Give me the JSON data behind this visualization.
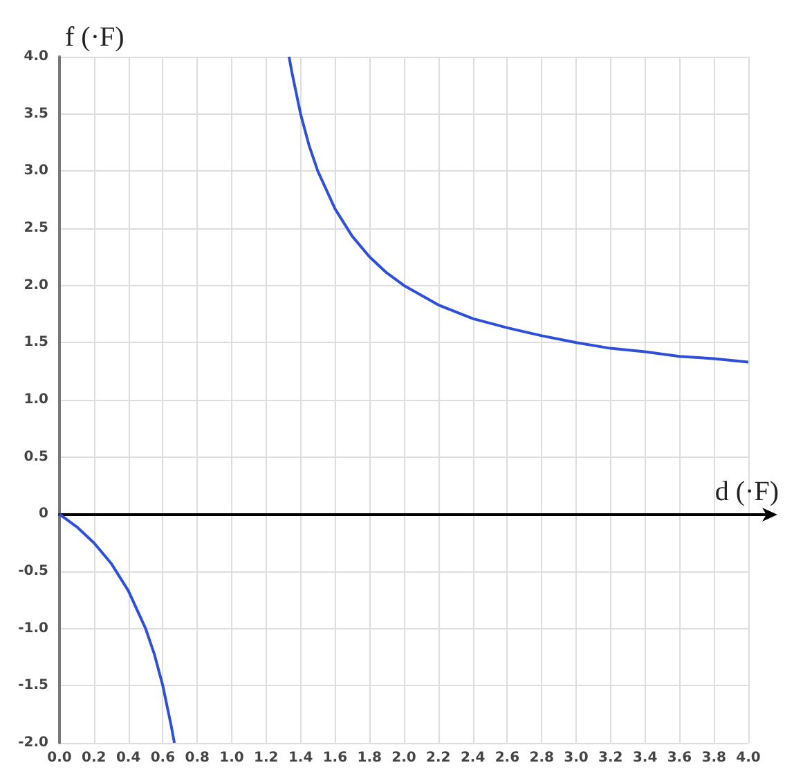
{
  "chart_data": {
    "type": "line",
    "xlabel": "d (·F)",
    "ylabel": "f (·F)",
    "x": [
      0,
      0.1,
      0.2,
      0.3,
      0.4,
      0.5,
      0.55,
      0.6,
      0.65,
      0.667,
      1.0,
      1.333,
      1.35,
      1.4,
      1.45,
      1.5,
      1.6,
      1.7,
      1.8,
      1.9,
      2.0,
      2.2,
      2.4,
      2.6,
      2.8,
      3.0,
      3.2,
      3.4,
      3.6,
      3.8,
      4.0
    ],
    "series": [
      {
        "color": "#2f4fd8",
        "values": [
          0,
          -0.11,
          -0.25,
          -0.43,
          -0.67,
          -1.0,
          -1.22,
          -1.5,
          -1.86,
          -2.0,
          null,
          4.0,
          3.86,
          3.5,
          3.22,
          3.0,
          2.67,
          2.43,
          2.25,
          2.11,
          2.0,
          1.83,
          1.71,
          1.63,
          1.56,
          1.5,
          1.45,
          1.42,
          1.38,
          1.36,
          1.33
        ]
      }
    ],
    "xlim": [
      0,
      4
    ],
    "ylim": [
      -2,
      4
    ],
    "xticks": [
      {
        "value": 0,
        "label": "0.0"
      },
      {
        "value": 0.2,
        "label": "0.2"
      },
      {
        "value": 0.4,
        "label": "0.4"
      },
      {
        "value": 0.6,
        "label": "0.6"
      },
      {
        "value": 0.8,
        "label": "0.8"
      },
      {
        "value": 1,
        "label": "1.0"
      },
      {
        "value": 1.2,
        "label": "1.2"
      },
      {
        "value": 1.4,
        "label": "1.4"
      },
      {
        "value": 1.6,
        "label": "1.6"
      },
      {
        "value": 1.8,
        "label": "1.8"
      },
      {
        "value": 2,
        "label": "2.0"
      },
      {
        "value": 2.2,
        "label": "2.2"
      },
      {
        "value": 2.4,
        "label": "2.4"
      },
      {
        "value": 2.6,
        "label": "2.6"
      },
      {
        "value": 2.8,
        "label": "2.8"
      },
      {
        "value": 3,
        "label": "3.0"
      },
      {
        "value": 3.2,
        "label": "3.2"
      },
      {
        "value": 3.4,
        "label": "3.4"
      },
      {
        "value": 3.6,
        "label": "3.6"
      },
      {
        "value": 3.8,
        "label": "3.8"
      },
      {
        "value": 4,
        "label": "4.0"
      }
    ],
    "yticks": [
      {
        "value": -2,
        "label": "-2.0"
      },
      -1.5,
      {
        "value": -1,
        "label": "-1.0"
      },
      -0.5,
      0,
      0.5,
      {
        "value": 1,
        "label": "1.0"
      },
      1.5,
      {
        "value": 2,
        "label": "2.0"
      },
      2.5,
      {
        "value": 3,
        "label": "3.0"
      },
      3.5,
      {
        "value": 4,
        "label": "4.0"
      }
    ],
    "grid": true,
    "marker": "none"
  }
}
